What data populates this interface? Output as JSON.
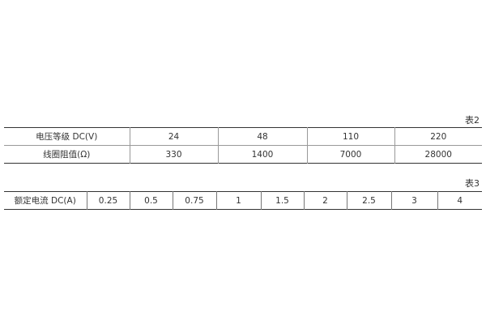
{
  "table2": {
    "caption": "表2",
    "rows": [
      {
        "label": "电压等级 DC(V)",
        "values": [
          "24",
          "48",
          "110",
          "220"
        ]
      },
      {
        "label": "线圈阻值(Ω)",
        "values": [
          "330",
          "1400",
          "7000",
          "28000"
        ]
      }
    ]
  },
  "table3": {
    "caption": "表3",
    "label": "额定电流 DC(A)",
    "values": [
      "0.25",
      "0.5",
      "0.75",
      "1",
      "1.5",
      "2",
      "2.5",
      "3",
      "4"
    ]
  }
}
